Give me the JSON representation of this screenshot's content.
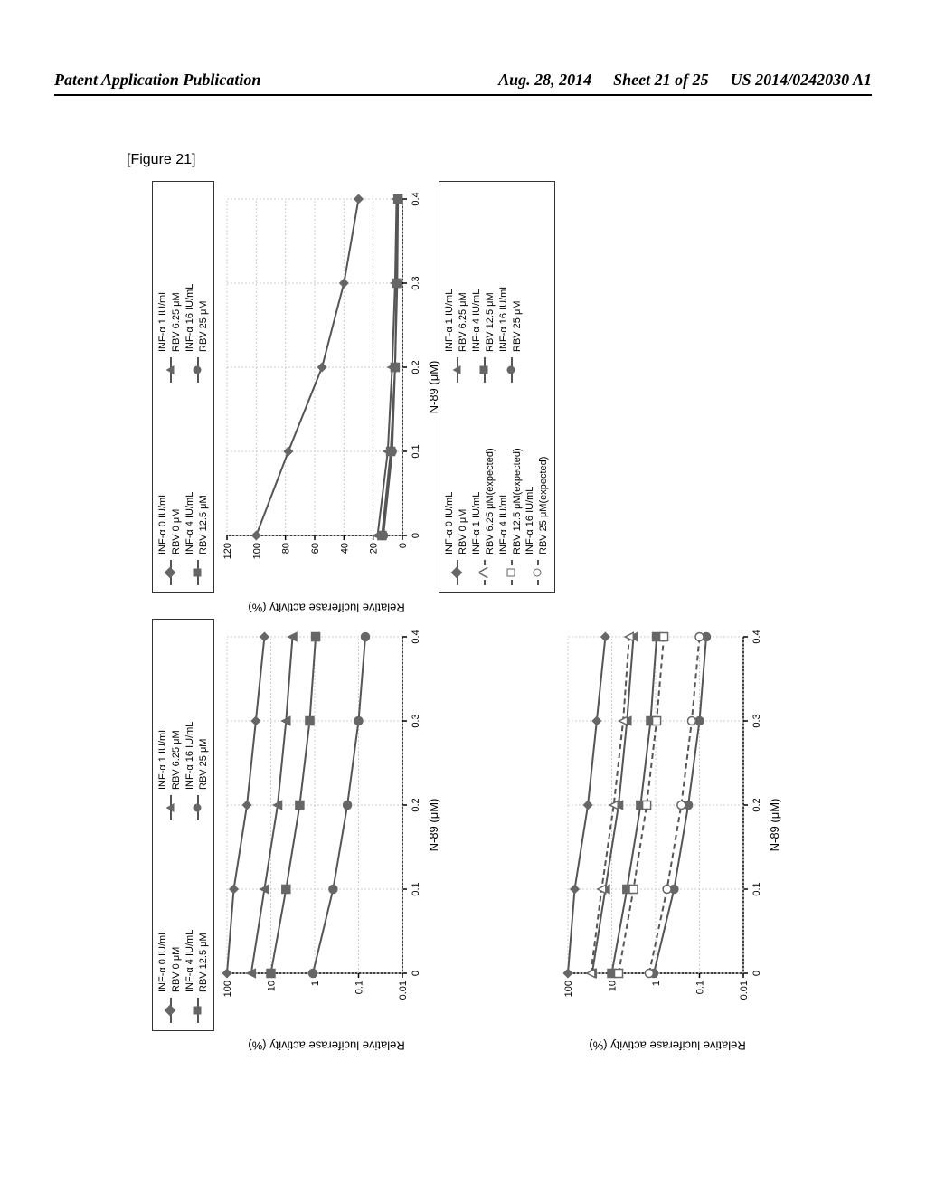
{
  "header": {
    "left": "Patent Application Publication",
    "date": "Aug. 28, 2014",
    "sheet": "Sheet 21 of 25",
    "docnum": "US 2014/0242030 A1"
  },
  "figure_label": "[Figure 21]",
  "xaxis_label": "N-89 (μM)",
  "yaxis_label": "Relative luciferase activity (%)",
  "x_ticks_top": [
    0,
    0.1,
    0.2,
    0.3,
    0.4
  ],
  "x_ticks_bottom": [
    0,
    0.1,
    0.2,
    0.3,
    0.4
  ],
  "y_ticks_linear": [
    0,
    20,
    40,
    60,
    80,
    100,
    120
  ],
  "y_ticks_log": [
    0.01,
    0.1,
    1,
    10,
    100
  ],
  "legend_top": [
    {
      "label": "INF-α 0 IU/mL\nRBV 0 μM",
      "marker": "diamond",
      "dash": false
    },
    {
      "label": "INF-α 1 IU/mL\nRBV 6.25 μM",
      "marker": "tri",
      "dash": false
    },
    {
      "label": "INF-α 4 IU/mL\nRBV 12.5 μM",
      "marker": "sq",
      "dash": false
    },
    {
      "label": "INF-α 16 IU/mL\nRBV 25 μM",
      "marker": "circ",
      "dash": false
    }
  ],
  "legend_bottom": [
    {
      "label": "INF-α 0 IU/mL\nRBV 0 μM",
      "marker": "diamond",
      "dash": false
    },
    {
      "label": "INF-α 1 IU/mL\nRBV 6.25 μM",
      "marker": "tri",
      "dash": false
    },
    {
      "label": "INF-α 1 IU/mL\nRBV 6.25 μM(expected)",
      "marker": "tri-h",
      "dash": true
    },
    {
      "label": "INF-α 4 IU/mL\nRBV 12.5 μM",
      "marker": "sq",
      "dash": false
    },
    {
      "label": "INF-α 4 IU/mL\nRBV 12.5 μM(expected)",
      "marker": "sq-h",
      "dash": true
    },
    {
      "label": "INF-α 16 IU/mL\nRBV 25 μM",
      "marker": "circ",
      "dash": false
    },
    {
      "label": "INF-α 16 IU/mL\nRBV 25 μM(expected)",
      "marker": "circ-h",
      "dash": true
    }
  ],
  "chart_TL": {
    "yscale": "log",
    "ymin": 0.01,
    "ymax": 100,
    "series": [
      {
        "m": "diamond",
        "y": [
          100,
          70,
          35,
          22,
          14
        ]
      },
      {
        "m": "tri",
        "y": [
          28,
          14,
          7,
          4.5,
          3.2
        ]
      },
      {
        "m": "sq",
        "y": [
          10,
          4.5,
          2.2,
          1.3,
          0.95
        ]
      },
      {
        "m": "circ",
        "y": [
          1.1,
          0.38,
          0.18,
          0.1,
          0.07
        ]
      }
    ]
  },
  "chart_TR": {
    "yscale": "linear",
    "ymin": 0,
    "ymax": 120,
    "series": [
      {
        "m": "diamond",
        "y": [
          100,
          78,
          55,
          40,
          30
        ]
      },
      {
        "m": "tri",
        "y": [
          17,
          10,
          7,
          5,
          4
        ]
      },
      {
        "m": "sq",
        "y": [
          14,
          8,
          5,
          4,
          3
        ]
      },
      {
        "m": "circ",
        "y": [
          13,
          7,
          5,
          3.5,
          3
        ]
      }
    ]
  },
  "chart_BL": {
    "yscale": "log",
    "ymin": 0.01,
    "ymax": 100,
    "series": [
      {
        "m": "diamond",
        "y": [
          100,
          70,
          35,
          22,
          14
        ]
      },
      {
        "m": "tri",
        "y": [
          28,
          14,
          7,
          4.5,
          3.2
        ]
      },
      {
        "m": "tri-h",
        "d": true,
        "y": [
          30,
          17,
          9,
          5.5,
          4
        ]
      },
      {
        "m": "sq",
        "y": [
          10,
          4.5,
          2.2,
          1.3,
          0.95
        ]
      },
      {
        "m": "sq-h",
        "d": true,
        "y": [
          7,
          3.2,
          1.6,
          0.95,
          0.65
        ]
      },
      {
        "m": "circ",
        "y": [
          1.1,
          0.38,
          0.18,
          0.1,
          0.07
        ]
      },
      {
        "m": "circ-h",
        "d": true,
        "y": [
          1.4,
          0.55,
          0.26,
          0.15,
          0.1
        ]
      }
    ]
  },
  "colors": {
    "axis": "#000000",
    "line": "#555555",
    "marker": "#666666",
    "grid": "#cccccc",
    "bg": "#ffffff"
  }
}
